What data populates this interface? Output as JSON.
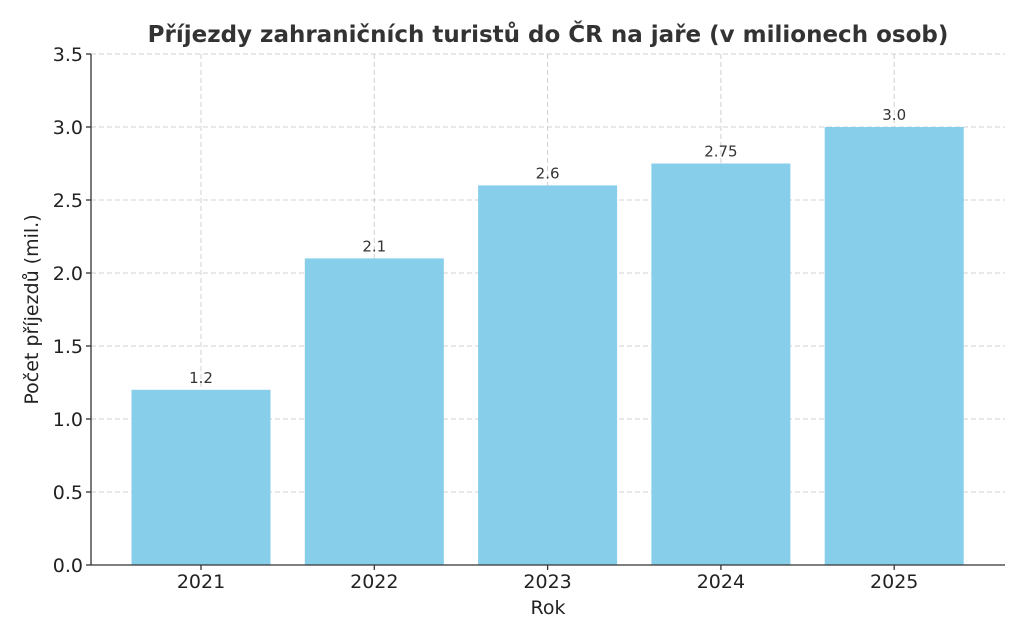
{
  "chart_data": {
    "type": "bar",
    "title": "Příjezdy zahraničních turistů do ČR na jaře (v milionech osob)",
    "xlabel": "Rok",
    "ylabel": "Počet příjezdů (mil.)",
    "categories": [
      "2021",
      "2022",
      "2023",
      "2024",
      "2025"
    ],
    "values": [
      1.2,
      2.1,
      2.6,
      2.75,
      3.0
    ],
    "data_labels": [
      "1.2",
      "2.1",
      "2.6",
      "2.75",
      "3.0"
    ],
    "ylim": [
      0,
      3.5
    ],
    "yticks": [
      0.0,
      0.5,
      1.0,
      1.5,
      2.0,
      2.5,
      3.0,
      3.5
    ],
    "ytick_labels": [
      "0.0",
      "0.5",
      "1.0",
      "1.5",
      "2.0",
      "2.5",
      "3.0",
      "3.5"
    ],
    "grid": true,
    "bar_color": "#87CEEB"
  }
}
